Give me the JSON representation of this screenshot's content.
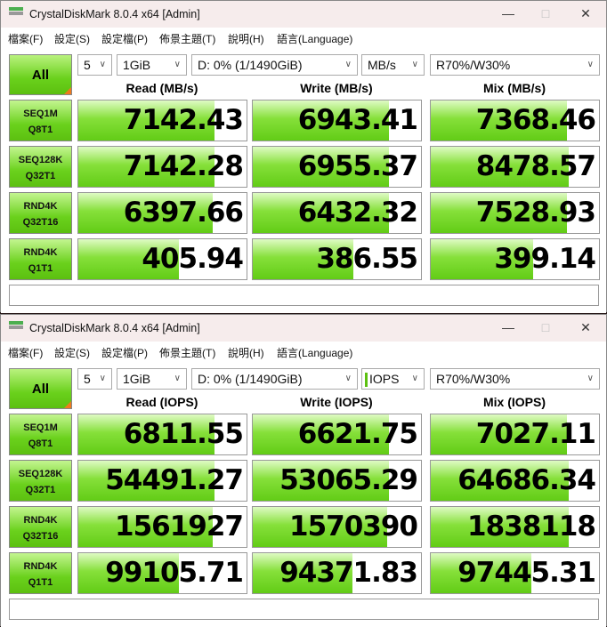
{
  "windows": [
    {
      "title": "CrystalDiskMark 8.0.4 x64 [Admin]",
      "menu": [
        "檔案(F)",
        "設定(S)",
        "設定檔(P)",
        "佈景主題(T)",
        "說明(H)",
        "語言(Language)"
      ],
      "all_label": "All",
      "count": "5",
      "size": "1GiB",
      "drive": "D: 0% (1/1490GiB)",
      "unit": "MB/s",
      "unit_marker": false,
      "mix_ratio": "R70%/W30%",
      "headers": [
        "Read (MB/s)",
        "Write (MB/s)",
        "Mix (MB/s)"
      ],
      "rows": [
        {
          "label1": "SEQ1M",
          "label2": "Q8T1",
          "values": [
            "7142.43",
            "6943.41",
            "7368.46"
          ],
          "fill": [
            0.81,
            0.81,
            0.81
          ]
        },
        {
          "label1": "SEQ128K",
          "label2": "Q32T1",
          "values": [
            "7142.28",
            "6955.37",
            "8478.57"
          ],
          "fill": [
            0.81,
            0.81,
            0.82
          ]
        },
        {
          "label1": "RND4K",
          "label2": "Q32T16",
          "values": [
            "6397.66",
            "6432.32",
            "7528.93"
          ],
          "fill": [
            0.8,
            0.81,
            0.81
          ]
        },
        {
          "label1": "RND4K",
          "label2": "Q1T1",
          "values": [
            "405.94",
            "386.55",
            "399.14"
          ],
          "fill": [
            0.6,
            0.6,
            0.61
          ]
        }
      ],
      "comment": ""
    },
    {
      "title": "CrystalDiskMark 8.0.4 x64 [Admin]",
      "menu": [
        "檔案(F)",
        "設定(S)",
        "設定檔(P)",
        "佈景主題(T)",
        "說明(H)",
        "語言(Language)"
      ],
      "all_label": "All",
      "count": "5",
      "size": "1GiB",
      "drive": "D: 0% (1/1490GiB)",
      "unit": "IOPS",
      "unit_marker": true,
      "mix_ratio": "R70%/W30%",
      "headers": [
        "Read (IOPS)",
        "Write (IOPS)",
        "Mix (IOPS)"
      ],
      "rows": [
        {
          "label1": "SEQ1M",
          "label2": "Q8T1",
          "values": [
            "6811.55",
            "6621.75",
            "7027.11"
          ],
          "fill": [
            0.81,
            0.81,
            0.81
          ]
        },
        {
          "label1": "SEQ128K",
          "label2": "Q32T1",
          "values": [
            "54491.27",
            "53065.29",
            "64686.34"
          ],
          "fill": [
            0.81,
            0.81,
            0.82
          ]
        },
        {
          "label1": "RND4K",
          "label2": "Q32T16",
          "values": [
            "1561927",
            "1570390",
            "1838118"
          ],
          "fill": [
            0.8,
            0.8,
            0.82
          ]
        },
        {
          "label1": "RND4K",
          "label2": "Q1T1",
          "values": [
            "99105.71",
            "94371.83",
            "97445.31"
          ],
          "fill": [
            0.6,
            0.59,
            0.6
          ]
        }
      ],
      "comment": ""
    }
  ],
  "colors": {
    "accent_green": "#62cc16",
    "corner_orange": "#f07a1e"
  }
}
